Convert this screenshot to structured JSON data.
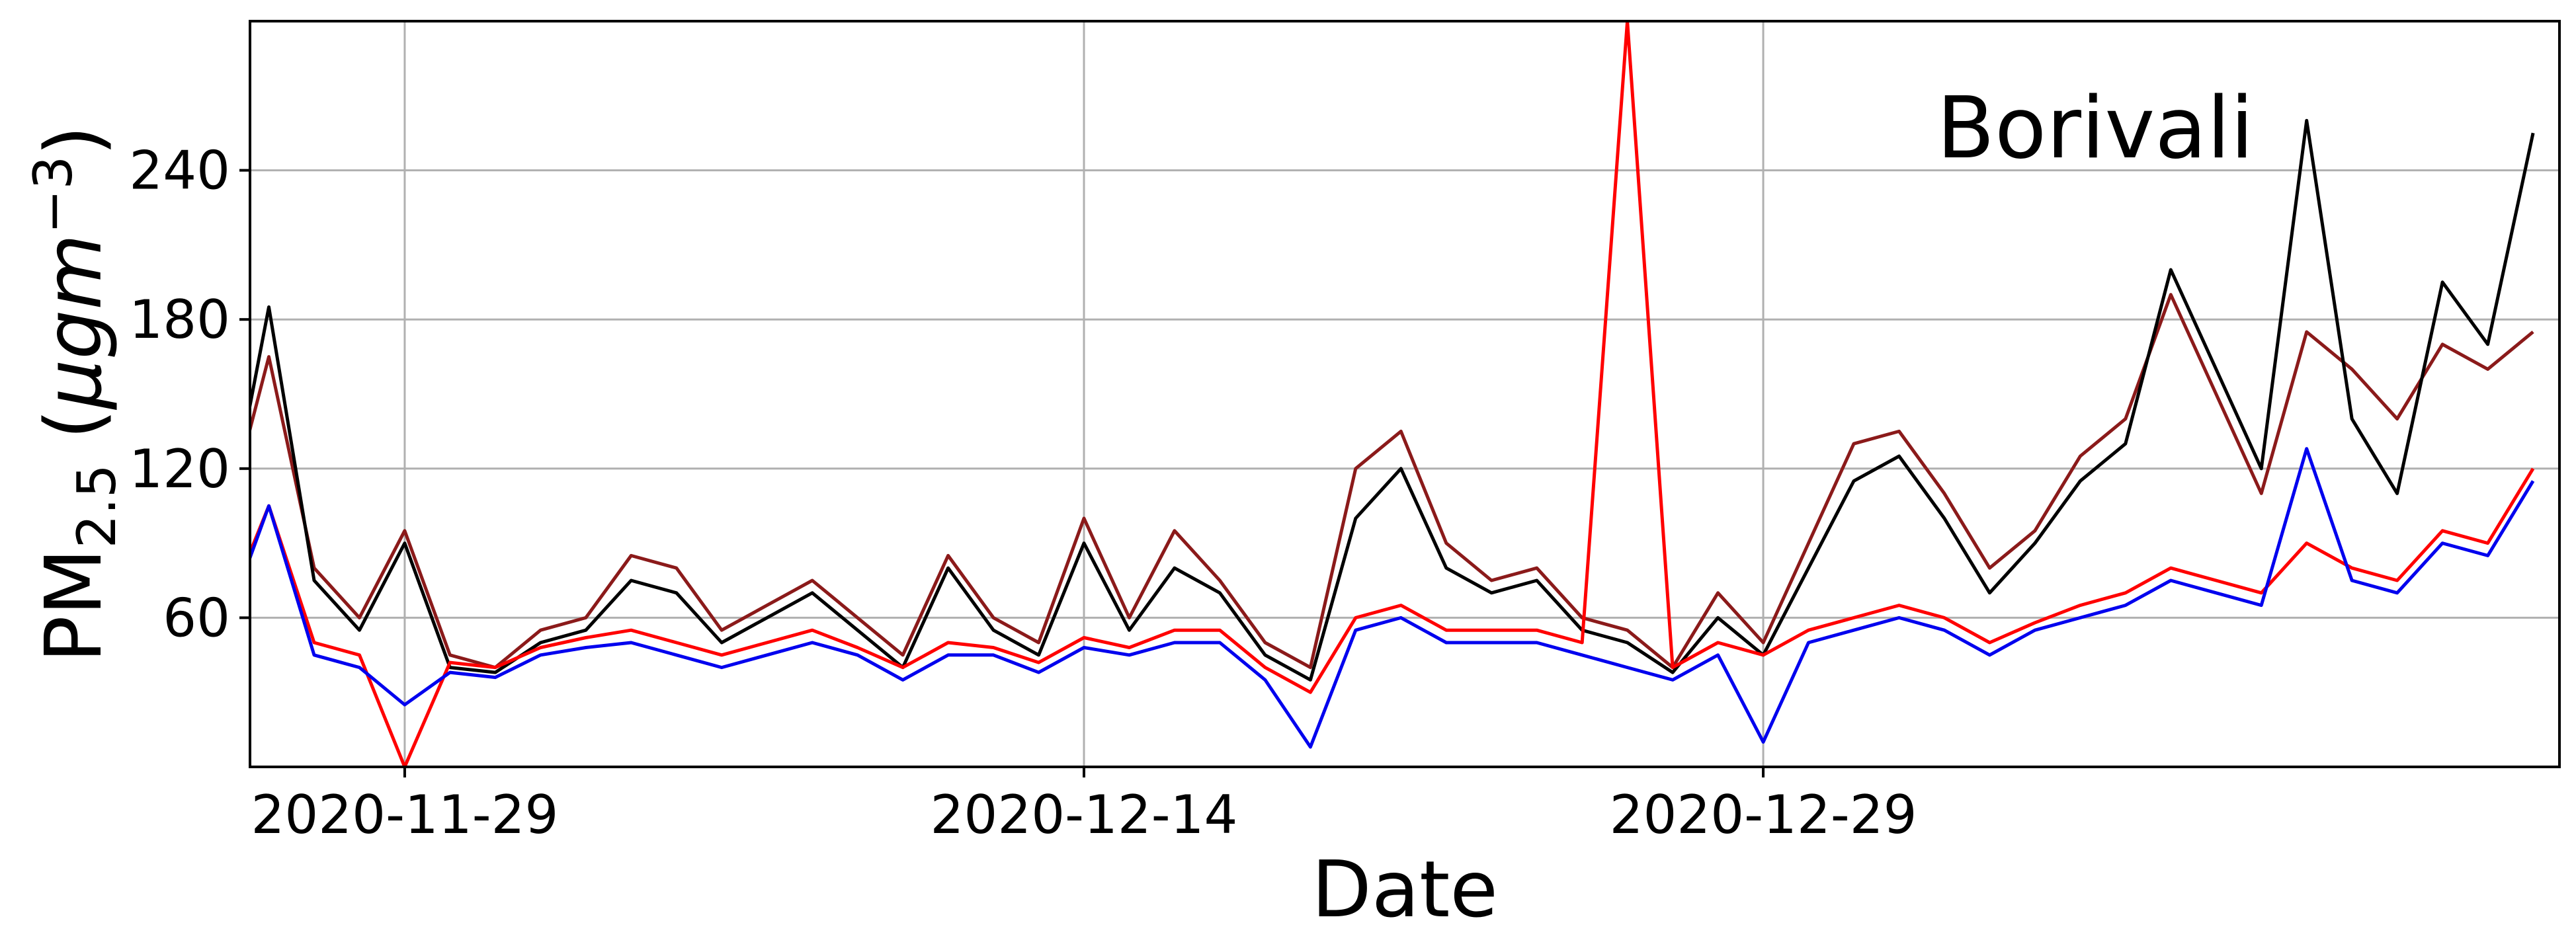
{
  "chart_data": {
    "type": "line",
    "title": "",
    "annotation": "Borivali",
    "xlabel": "Date",
    "ylabel": {
      "main": "PM",
      "sub": "2.5",
      "unit_open": " (",
      "unit": "μgm",
      "sup": "−3",
      "unit_close": ")"
    },
    "x_axis": {
      "type": "date",
      "range": [
        "2020-11-25T14:00",
        "2021-01-15T14:00"
      ],
      "ticks": [
        "2020-11-29",
        "2020-12-14",
        "2020-12-29"
      ]
    },
    "y_axis": {
      "range": [
        0,
        300
      ],
      "ticks": [
        60,
        120,
        180,
        240
      ]
    },
    "grid": true,
    "legend": "none",
    "series": [
      {
        "color": "#8b1a1a",
        "x": [
          "2020-11-25",
          "2020-11-26",
          "2020-11-27",
          "2020-11-28",
          "2020-11-29",
          "2020-11-30",
          "2020-12-01",
          "2020-12-02",
          "2020-12-03",
          "2020-12-04",
          "2020-12-05",
          "2020-12-06",
          "2020-12-07",
          "2020-12-08",
          "2020-12-09",
          "2020-12-10",
          "2020-12-11",
          "2020-12-12",
          "2020-12-13",
          "2020-12-14",
          "2020-12-15",
          "2020-12-16",
          "2020-12-17",
          "2020-12-18",
          "2020-12-19",
          "2020-12-20",
          "2020-12-21",
          "2020-12-22",
          "2020-12-23",
          "2020-12-24",
          "2020-12-25",
          "2020-12-26",
          "2020-12-27",
          "2020-12-28",
          "2020-12-29",
          "2020-12-30",
          "2020-12-31",
          "2021-01-01",
          "2021-01-02",
          "2021-01-03",
          "2021-01-04",
          "2021-01-05",
          "2021-01-06",
          "2021-01-07",
          "2021-01-08",
          "2021-01-09",
          "2021-01-10",
          "2021-01-11",
          "2021-01-12",
          "2021-01-13",
          "2021-01-14",
          "2021-01-15"
        ],
        "y": [
          95,
          165,
          80,
          60,
          95,
          45,
          40,
          55,
          60,
          85,
          80,
          55,
          65,
          75,
          60,
          45,
          85,
          60,
          50,
          100,
          60,
          95,
          75,
          50,
          40,
          120,
          135,
          90,
          75,
          80,
          60,
          55,
          40,
          70,
          50,
          90,
          130,
          135,
          110,
          80,
          95,
          125,
          140,
          190,
          150,
          110,
          175,
          160,
          140,
          170,
          160,
          175
        ]
      },
      {
        "color": "#000000",
        "x": [
          "2020-11-25",
          "2020-11-26",
          "2020-11-27",
          "2020-11-28",
          "2020-11-29",
          "2020-11-30",
          "2020-12-01",
          "2020-12-02",
          "2020-12-03",
          "2020-12-04",
          "2020-12-05",
          "2020-12-06",
          "2020-12-07",
          "2020-12-08",
          "2020-12-09",
          "2020-12-10",
          "2020-12-11",
          "2020-12-12",
          "2020-12-13",
          "2020-12-14",
          "2020-12-15",
          "2020-12-16",
          "2020-12-17",
          "2020-12-18",
          "2020-12-19",
          "2020-12-20",
          "2020-12-21",
          "2020-12-22",
          "2020-12-23",
          "2020-12-24",
          "2020-12-25",
          "2020-12-26",
          "2020-12-27",
          "2020-12-28",
          "2020-12-29",
          "2020-12-30",
          "2020-12-31",
          "2021-01-01",
          "2021-01-02",
          "2021-01-03",
          "2021-01-04",
          "2021-01-05",
          "2021-01-06",
          "2021-01-07",
          "2021-01-08",
          "2021-01-09",
          "2021-01-10",
          "2021-01-11",
          "2021-01-12",
          "2021-01-13",
          "2021-01-14",
          "2021-01-15"
        ],
        "y": [
          90,
          185,
          75,
          55,
          90,
          40,
          38,
          50,
          55,
          75,
          70,
          50,
          60,
          70,
          55,
          40,
          80,
          55,
          45,
          90,
          55,
          80,
          70,
          45,
          35,
          100,
          120,
          80,
          70,
          75,
          55,
          50,
          38,
          60,
          45,
          80,
          115,
          125,
          100,
          70,
          90,
          115,
          130,
          200,
          160,
          120,
          260,
          140,
          110,
          195,
          170,
          255
        ]
      },
      {
        "color": "#ff0000",
        "x": [
          "2020-11-25",
          "2020-11-26",
          "2020-11-27",
          "2020-11-28",
          "2020-11-29",
          "2020-11-30",
          "2020-12-01",
          "2020-12-02",
          "2020-12-03",
          "2020-12-04",
          "2020-12-05",
          "2020-12-06",
          "2020-12-07",
          "2020-12-08",
          "2020-12-09",
          "2020-12-10",
          "2020-12-11",
          "2020-12-12",
          "2020-12-13",
          "2020-12-14",
          "2020-12-15",
          "2020-12-16",
          "2020-12-17",
          "2020-12-18",
          "2020-12-19",
          "2020-12-20",
          "2020-12-21",
          "2020-12-22",
          "2020-12-23",
          "2020-12-24",
          "2020-12-25",
          "2020-12-26",
          "2020-12-27",
          "2020-12-28",
          "2020-12-29",
          "2020-12-30",
          "2020-12-31",
          "2021-01-01",
          "2021-01-02",
          "2021-01-03",
          "2021-01-04",
          "2021-01-05",
          "2021-01-06",
          "2021-01-07",
          "2021-01-08",
          "2021-01-09",
          "2021-01-10",
          "2021-01-11",
          "2021-01-12",
          "2021-01-13",
          "2021-01-14",
          "2021-01-15"
        ],
        "y": [
          60,
          105,
          50,
          45,
          0,
          42,
          40,
          48,
          52,
          55,
          50,
          45,
          50,
          55,
          48,
          40,
          50,
          48,
          42,
          52,
          48,
          55,
          55,
          40,
          30,
          60,
          65,
          55,
          55,
          55,
          50,
          300,
          40,
          50,
          45,
          55,
          60,
          65,
          60,
          50,
          58,
          65,
          70,
          80,
          75,
          70,
          90,
          80,
          75,
          95,
          90,
          120
        ]
      },
      {
        "color": "#0000ee",
        "x": [
          "2020-11-25",
          "2020-11-26",
          "2020-11-27",
          "2020-11-28",
          "2020-11-29",
          "2020-11-30",
          "2020-12-01",
          "2020-12-02",
          "2020-12-03",
          "2020-12-04",
          "2020-12-05",
          "2020-12-06",
          "2020-12-07",
          "2020-12-08",
          "2020-12-09",
          "2020-12-10",
          "2020-12-11",
          "2020-12-12",
          "2020-12-13",
          "2020-12-14",
          "2020-12-15",
          "2020-12-16",
          "2020-12-17",
          "2020-12-18",
          "2020-12-19",
          "2020-12-20",
          "2020-12-21",
          "2020-12-22",
          "2020-12-23",
          "2020-12-24",
          "2020-12-25",
          "2020-12-26",
          "2020-12-27",
          "2020-12-28",
          "2020-12-29",
          "2020-12-30",
          "2020-12-31",
          "2021-01-01",
          "2021-01-02",
          "2021-01-03",
          "2021-01-04",
          "2021-01-05",
          "2021-01-06",
          "2021-01-07",
          "2021-01-08",
          "2021-01-09",
          "2021-01-10",
          "2021-01-11",
          "2021-01-12",
          "2021-01-13",
          "2021-01-14",
          "2021-01-15"
        ],
        "y": [
          55,
          105,
          45,
          40,
          25,
          38,
          36,
          45,
          48,
          50,
          45,
          40,
          45,
          50,
          45,
          35,
          45,
          45,
          38,
          48,
          45,
          50,
          50,
          35,
          8,
          55,
          60,
          50,
          50,
          50,
          45,
          40,
          35,
          45,
          10,
          50,
          55,
          60,
          55,
          45,
          55,
          60,
          65,
          75,
          70,
          65,
          128,
          75,
          70,
          90,
          85,
          115
        ]
      }
    ]
  }
}
